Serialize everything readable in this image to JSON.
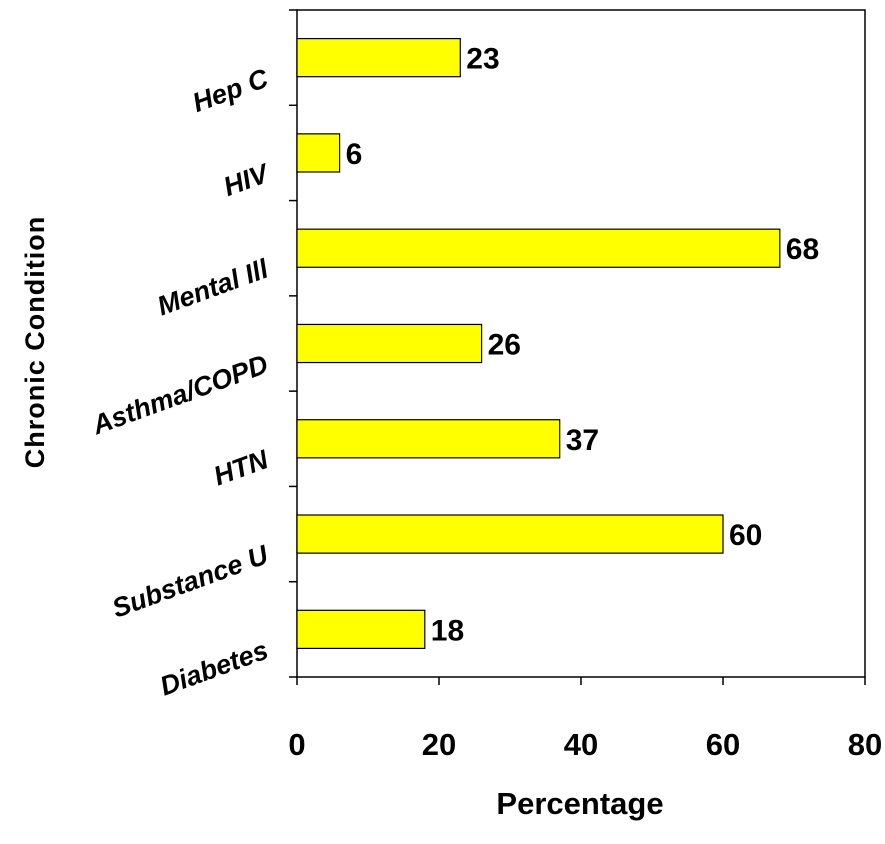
{
  "chart_data": {
    "type": "bar",
    "orientation": "horizontal",
    "categories": [
      "Hep C",
      "HIV",
      "Mental Ill",
      "Asthma/COPD",
      "HTN",
      "Substance U",
      "Diabetes"
    ],
    "values": [
      23,
      6,
      68,
      26,
      37,
      60,
      18
    ],
    "title": "",
    "xlabel": "Percentage",
    "ylabel": "Chronic Condition",
    "xlim": [
      0,
      80
    ],
    "xticks": [
      0,
      20,
      40,
      60,
      80
    ],
    "grid": false,
    "legend": "none",
    "bar_color": "#ffff00",
    "bar_edge_color": "#000000"
  }
}
